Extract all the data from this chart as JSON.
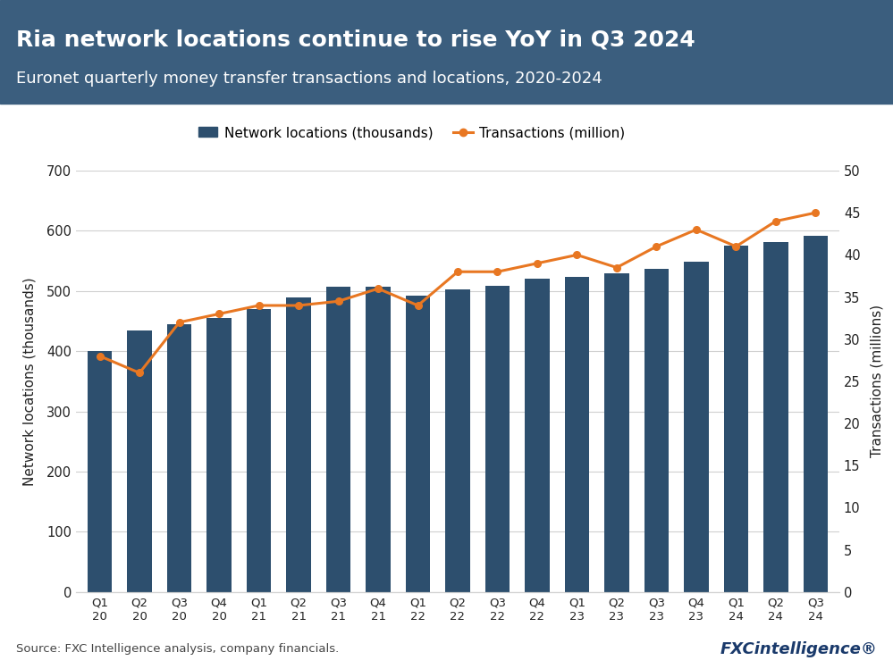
{
  "categories": [
    "Q1\n20",
    "Q2\n20",
    "Q3\n20",
    "Q4\n20",
    "Q1\n21",
    "Q2\n21",
    "Q3\n21",
    "Q4\n21",
    "Q1\n22",
    "Q2\n22",
    "Q3\n22",
    "Q4\n22",
    "Q1\n23",
    "Q2\n23",
    "Q3\n23",
    "Q4\n23",
    "Q1\n24",
    "Q2\n24",
    "Q3\n24"
  ],
  "bar_values": [
    400,
    435,
    445,
    455,
    470,
    490,
    507,
    507,
    492,
    503,
    508,
    520,
    523,
    530,
    537,
    548,
    575,
    582,
    592
  ],
  "line_values": [
    28,
    26,
    32,
    33,
    34,
    34,
    34.5,
    36,
    34,
    38,
    38,
    39,
    40,
    38.5,
    41,
    43,
    41,
    44,
    45
  ],
  "bar_color": "#2d4f6e",
  "line_color": "#e87722",
  "header_bg_color": "#3b5e7e",
  "chart_bg_color": "#ffffff",
  "title": "Ria network locations continue to rise YoY in Q3 2024",
  "subtitle": "Euronet quarterly money transfer transactions and locations, 2020-2024",
  "title_color": "#ffffff",
  "subtitle_color": "#ffffff",
  "ylabel_left": "Network locations (thousands)",
  "ylabel_right": "Transactions (millions)",
  "ylim_left": [
    0,
    700
  ],
  "ylim_right": [
    0,
    50
  ],
  "yticks_left": [
    0,
    100,
    200,
    300,
    400,
    500,
    600,
    700
  ],
  "yticks_right": [
    0,
    5,
    10,
    15,
    20,
    25,
    30,
    35,
    40,
    45,
    50
  ],
  "source_text": "Source: FXC Intelligence analysis, company financials.",
  "legend_bar_label": "Network locations (thousands)",
  "legend_line_label": "Transactions (million)",
  "grid_color": "#d0d0d0",
  "axis_label_color": "#222222",
  "tick_label_color": "#222222",
  "fxc_logo_color": "#1a3a6b"
}
